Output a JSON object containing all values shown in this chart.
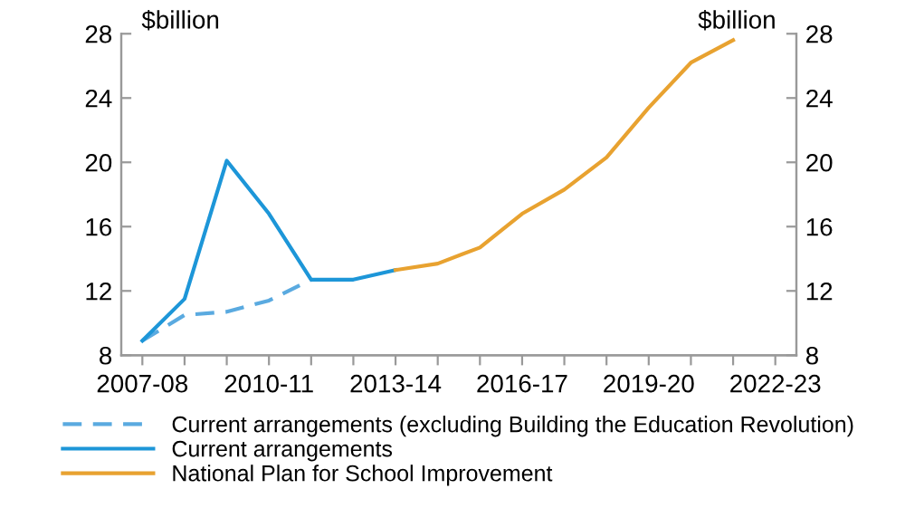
{
  "chart_data": {
    "type": "line",
    "ylabel": "$billion",
    "y2label": "$billion",
    "categories": [
      "2007-08",
      null,
      null,
      "2010-11",
      null,
      null,
      "2013-14",
      null,
      null,
      "2016-17",
      null,
      null,
      "2019-20",
      null,
      null,
      "2022-23"
    ],
    "series": [
      {
        "name": "Current arrangements (excluding Building the Education Revolution)",
        "color": "#5aaae0",
        "line_style": "dashed",
        "values": [
          8.9,
          10.5,
          10.7,
          11.4,
          12.7,
          null,
          null,
          null,
          null,
          null,
          null,
          null,
          null,
          null,
          null,
          null
        ]
      },
      {
        "name": "Current arrangements",
        "color": "#1d96d8",
        "line_style": "solid",
        "values": [
          8.9,
          11.5,
          20.1,
          16.8,
          12.7,
          12.7,
          13.3,
          null,
          null,
          null,
          null,
          null,
          null,
          null,
          null,
          null
        ]
      },
      {
        "name": "National Plan for School Improvement",
        "color": "#e8a230",
        "line_style": "solid",
        "values": [
          null,
          null,
          null,
          null,
          null,
          null,
          13.3,
          13.7,
          14.7,
          16.8,
          18.3,
          20.3,
          23.4,
          26.2,
          27.6,
          null
        ]
      }
    ],
    "ylim": [
      8,
      28
    ],
    "yticks": [
      8,
      12,
      16,
      20,
      24,
      28
    ],
    "y2lim": [
      8,
      28
    ],
    "y2ticks": [
      8,
      12,
      16,
      20,
      24,
      28
    ],
    "grid": false,
    "legend": "bottom"
  }
}
